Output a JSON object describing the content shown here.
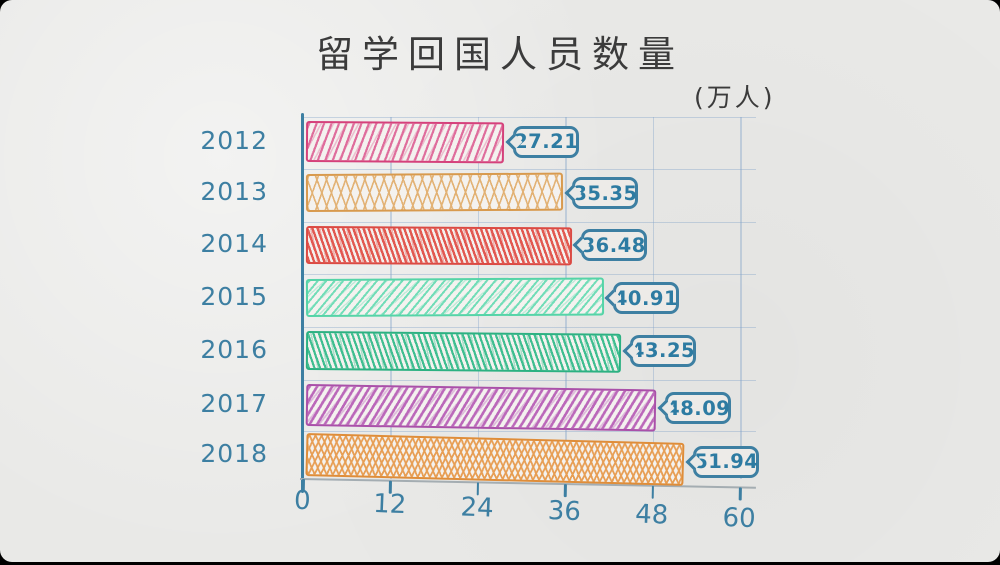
{
  "frame": {
    "outer_background": "#000000",
    "paper_background": "#e9e9e7"
  },
  "chart_data": {
    "type": "bar",
    "orientation": "horizontal",
    "style": "hand-drawn-sketch",
    "title": "留学回国人员数量",
    "unit_label": "(万人)",
    "xlabel": "",
    "ylabel": "",
    "xlim": [
      0,
      60
    ],
    "x_ticks": [
      "0",
      "12",
      "24",
      "36",
      "48",
      "60"
    ],
    "grid": true,
    "legend": false,
    "categories": [
      "2012",
      "2013",
      "2014",
      "2015",
      "2016",
      "2017",
      "2018"
    ],
    "values": [
      27.21,
      35.35,
      36.48,
      40.91,
      43.25,
      48.09,
      51.94
    ],
    "bars": [
      {
        "year": "2012",
        "value": 27.21,
        "value_label": "27.21",
        "stroke_color": "#d5417b",
        "fill_color": "#df6d9c",
        "hatch": "diagonal-steep"
      },
      {
        "year": "2013",
        "value": 35.35,
        "value_label": "35.35",
        "stroke_color": "#d89a4e",
        "fill_color": "#e2b173",
        "hatch": "cross-diamond"
      },
      {
        "year": "2014",
        "value": 36.48,
        "value_label": "36.48",
        "stroke_color": "#db4a43",
        "fill_color": "#e25850",
        "hatch": "diagonal-dense"
      },
      {
        "year": "2015",
        "value": 40.91,
        "value_label": "40.91",
        "stroke_color": "#55d4a7",
        "fill_color": "#72ddb8",
        "hatch": "diagonal-light"
      },
      {
        "year": "2016",
        "value": 43.25,
        "value_label": "43.25",
        "stroke_color": "#2cb182",
        "fill_color": "#3fbe90",
        "hatch": "diagonal-steep-left"
      },
      {
        "year": "2017",
        "value": 48.09,
        "value_label": "48.09",
        "stroke_color": "#aa50a9",
        "fill_color": "#bb68ba",
        "hatch": "diagonal"
      },
      {
        "year": "2018",
        "value": 51.94,
        "value_label": "51.94",
        "stroke_color": "#df8d39",
        "fill_color": "#e79e54",
        "hatch": "cross-diamond-dense"
      }
    ],
    "colors": {
      "axis": "#3d7fa2",
      "tick_label": "#3d7fa2",
      "year_label": "#3d7fa2",
      "value_bubble_border": "#2d7ba2",
      "value_bubble_text": "#2d7ba2",
      "gridline": "#7da0c8",
      "title_text": "#3b3b3b"
    }
  }
}
